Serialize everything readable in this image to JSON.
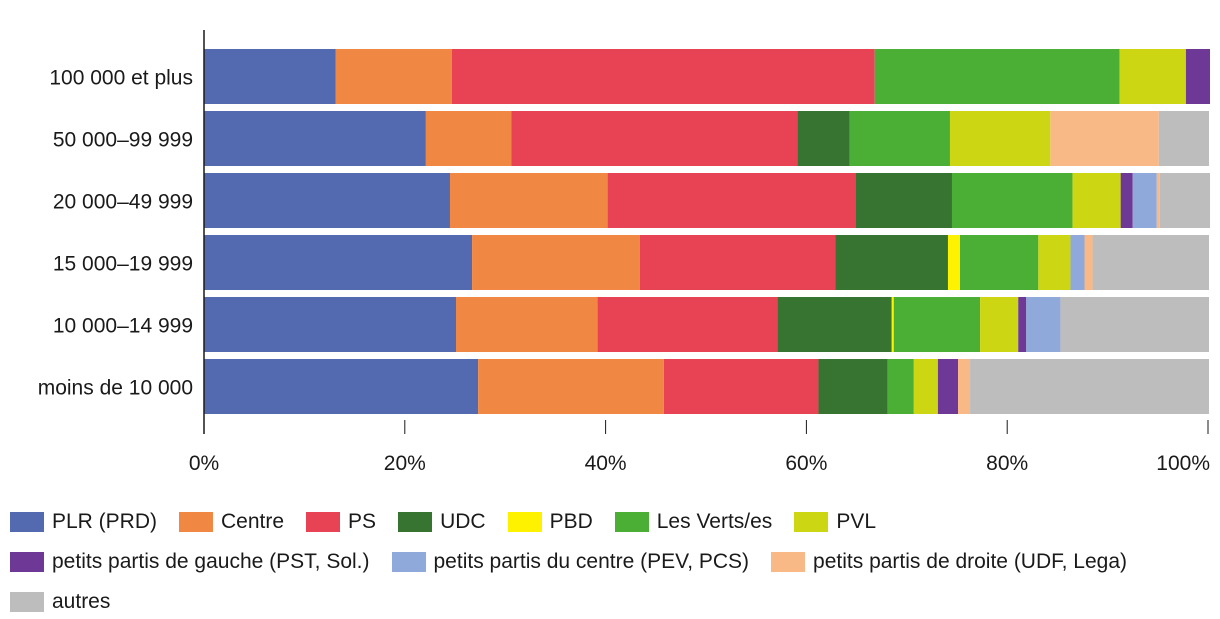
{
  "chart_data": {
    "type": "bar",
    "orientation": "horizontal",
    "stacked": true,
    "categories": [
      "100 000 et plus",
      "50 000–99 999",
      "20 000–49 999",
      "15 000–19 999",
      "10 000–14 999",
      "moins de 10 000"
    ],
    "series": [
      {
        "name": "PLR (PRD)",
        "color": "#5369b0",
        "values": [
          13.1,
          22.1,
          24.5,
          26.7,
          25.1,
          27.3
        ]
      },
      {
        "name": "Centre",
        "color": "#f08843",
        "values": [
          11.6,
          8.5,
          15.7,
          16.7,
          14.1,
          18.5
        ]
      },
      {
        "name": "PS",
        "color": "#e84355",
        "values": [
          42.1,
          28.5,
          24.7,
          19.5,
          17.9,
          15.4
        ]
      },
      {
        "name": "UDC",
        "color": "#377431",
        "values": [
          0,
          5.2,
          9.6,
          11.2,
          11.4,
          6.9
        ]
      },
      {
        "name": "PBD",
        "color": "#fff200",
        "values": [
          0,
          0,
          0,
          1.2,
          0.2,
          0
        ]
      },
      {
        "name": "Les Verts/es",
        "color": "#4caf35",
        "values": [
          24.4,
          10.0,
          12.0,
          7.8,
          8.6,
          2.6
        ]
      },
      {
        "name": "PVL",
        "color": "#ccd613",
        "values": [
          6.6,
          10.0,
          4.8,
          3.2,
          3.8,
          2.4
        ]
      },
      {
        "name": "petits partis de gauche (PST, Sol.)",
        "color": "#6e3996",
        "values": [
          2.4,
          0,
          1.2,
          0,
          0.8,
          2.0
        ]
      },
      {
        "name": "petits partis du centre (PEV, PCS)",
        "color": "#8fa9db",
        "values": [
          0,
          0,
          2.4,
          1.4,
          3.4,
          0
        ]
      },
      {
        "name": "petits partis de droite (UDF, Lega)",
        "color": "#f9b987",
        "values": [
          0,
          10.8,
          0.3,
          0.8,
          0,
          1.2
        ]
      },
      {
        "name": "autres",
        "color": "#bdbdbd",
        "values": [
          0,
          5.0,
          5.0,
          11.6,
          14.8,
          23.8
        ]
      }
    ],
    "xlim": [
      0,
      100
    ],
    "xticks": [
      "0%",
      "20%",
      "40%",
      "60%",
      "80%",
      "100%"
    ],
    "xtick_values": [
      0,
      20,
      40,
      60,
      80,
      100
    ],
    "title": "",
    "xlabel": "",
    "ylabel": "",
    "grid": false,
    "legend_position": "bottom"
  }
}
